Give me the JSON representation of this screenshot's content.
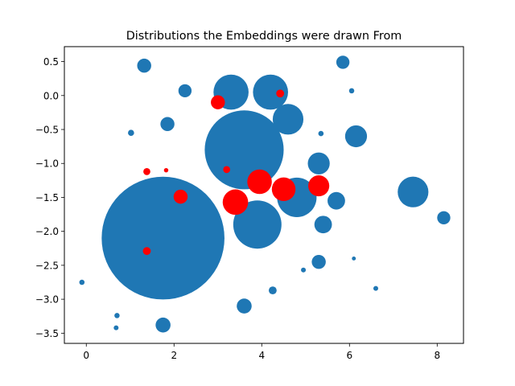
{
  "chart_data": {
    "type": "scatter",
    "title": "Distributions the Embeddings were drawn From",
    "xlabel": "",
    "ylabel": "",
    "xlim": [
      -0.5,
      8.6
    ],
    "ylim": [
      -3.65,
      0.72
    ],
    "xticks": [
      0,
      2,
      4,
      6,
      8
    ],
    "yticks": [
      0.5,
      0.0,
      -0.5,
      -1.0,
      -1.5,
      -2.0,
      -2.5,
      -3.0,
      -3.5
    ],
    "xtick_labels": [
      "0",
      "2",
      "4",
      "6",
      "8"
    ],
    "ytick_labels": [
      "0.5",
      "0.0",
      "−0.5",
      "−1.0",
      "−1.5",
      "−2.0",
      "−2.5",
      "−3.0",
      "−3.5"
    ],
    "grid": false,
    "series": [
      {
        "color": "#1f77b4",
        "points": [
          {
            "x": 1.75,
            "y": -2.1,
            "r": 1.4
          },
          {
            "x": 3.3,
            "y": 0.05,
            "r": 0.4
          },
          {
            "x": 4.2,
            "y": 0.05,
            "r": 0.4
          },
          {
            "x": 3.6,
            "y": -0.8,
            "r": 0.9
          },
          {
            "x": 4.6,
            "y": -0.35,
            "r": 0.35
          },
          {
            "x": 3.9,
            "y": -1.9,
            "r": 0.55
          },
          {
            "x": 4.8,
            "y": -1.5,
            "r": 0.45
          },
          {
            "x": 5.3,
            "y": -1.0,
            "r": 0.25
          },
          {
            "x": 7.45,
            "y": -1.42,
            "r": 0.35
          },
          {
            "x": 6.15,
            "y": -0.6,
            "r": 0.25
          },
          {
            "x": 1.32,
            "y": 0.44,
            "r": 0.16
          },
          {
            "x": 5.85,
            "y": 0.49,
            "r": 0.15
          },
          {
            "x": 2.25,
            "y": 0.07,
            "r": 0.15
          },
          {
            "x": 1.85,
            "y": -0.42,
            "r": 0.16
          },
          {
            "x": 5.7,
            "y": -1.55,
            "r": 0.2
          },
          {
            "x": 5.4,
            "y": -1.9,
            "r": 0.2
          },
          {
            "x": 5.3,
            "y": -2.45,
            "r": 0.16
          },
          {
            "x": 3.6,
            "y": -3.1,
            "r": 0.17
          },
          {
            "x": 1.75,
            "y": -3.38,
            "r": 0.17
          },
          {
            "x": 4.25,
            "y": -2.87,
            "r": 0.09
          },
          {
            "x": 8.15,
            "y": -1.8,
            "r": 0.15
          },
          {
            "x": 1.02,
            "y": -0.55,
            "r": 0.07
          },
          {
            "x": 6.05,
            "y": 0.07,
            "r": 0.06
          },
          {
            "x": 5.35,
            "y": -0.56,
            "r": 0.06
          },
          {
            "x": -0.1,
            "y": -2.75,
            "r": 0.06
          },
          {
            "x": 0.7,
            "y": -3.24,
            "r": 0.06
          },
          {
            "x": 0.68,
            "y": -3.42,
            "r": 0.055
          },
          {
            "x": 4.95,
            "y": -2.57,
            "r": 0.055
          },
          {
            "x": 6.1,
            "y": -2.4,
            "r": 0.045
          },
          {
            "x": 6.6,
            "y": -2.84,
            "r": 0.055
          }
        ]
      },
      {
        "color": "#ff0000",
        "points": [
          {
            "x": 3.95,
            "y": -1.27,
            "r": 0.28
          },
          {
            "x": 3.4,
            "y": -1.57,
            "r": 0.29
          },
          {
            "x": 4.5,
            "y": -1.38,
            "r": 0.27
          },
          {
            "x": 5.3,
            "y": -1.33,
            "r": 0.24
          },
          {
            "x": 2.15,
            "y": -1.49,
            "r": 0.16
          },
          {
            "x": 3.0,
            "y": -0.1,
            "r": 0.16
          },
          {
            "x": 4.42,
            "y": 0.03,
            "r": 0.09
          },
          {
            "x": 1.38,
            "y": -2.29,
            "r": 0.09
          },
          {
            "x": 1.38,
            "y": -1.12,
            "r": 0.08
          },
          {
            "x": 3.2,
            "y": -1.09,
            "r": 0.08
          },
          {
            "x": 1.82,
            "y": -1.1,
            "r": 0.05
          }
        ]
      }
    ]
  }
}
